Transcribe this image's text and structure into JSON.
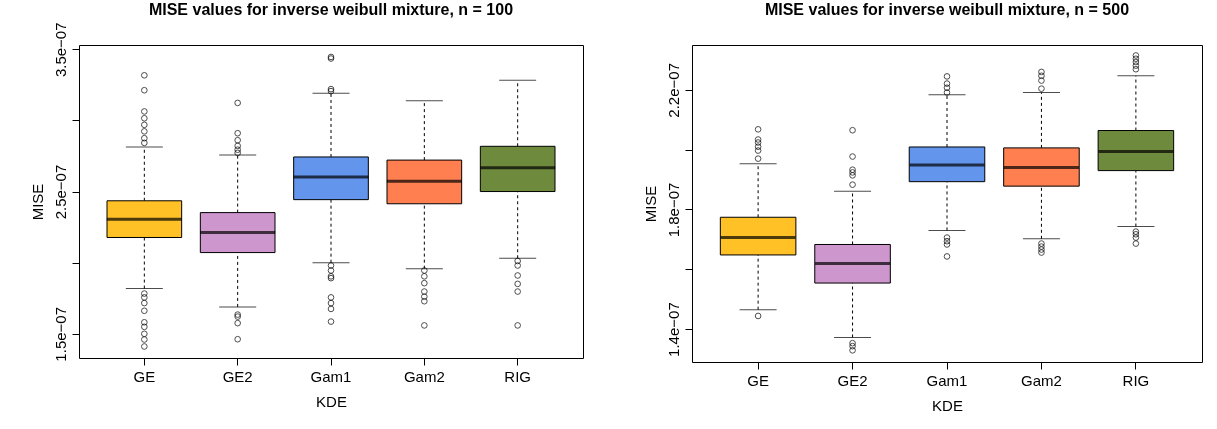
{
  "chart_data": [
    {
      "type": "box",
      "title": "MISE values for inverse weibull mixture, n = 100",
      "xlabel": "KDE",
      "ylabel": "MISE",
      "categories": [
        "GE",
        "GE2",
        "Gam1",
        "Gam2",
        "RIG"
      ],
      "colors": [
        "#ffc125",
        "#cd96cd",
        "#6495ed",
        "#ff7f50",
        "#6e8b3d"
      ],
      "ylim": [
        1.33e-07,
        3.53e-07
      ],
      "yticks": [
        {
          "value": 1.5e-07,
          "label": "1.5e−07"
        },
        {
          "value": 2e-07,
          "label": null
        },
        {
          "value": 2.5e-07,
          "label": "2.5e−07"
        },
        {
          "value": 3e-07,
          "label": null
        },
        {
          "value": 3.5e-07,
          "label": "3.5e−07"
        }
      ],
      "boxes": [
        {
          "low": 1.818e-07,
          "q1": 2.177e-07,
          "median": 2.306e-07,
          "q3": 2.435e-07,
          "high": 2.813e-07,
          "outliers": [
            3.317e-07,
            3.212e-07,
            3.063e-07,
            3.015e-07,
            2.969e-07,
            2.923e-07,
            2.875e-07,
            2.842e-07,
            1.783e-07,
            1.756e-07,
            1.716e-07,
            1.662e-07,
            1.581e-07,
            1.549e-07,
            1.5e-07,
            1.46e-07,
            1.411e-07
          ]
        },
        {
          "low": 1.689e-07,
          "q1": 2.071e-07,
          "median": 2.212e-07,
          "q3": 2.352e-07,
          "high": 2.756e-07,
          "outliers": [
            3.123e-07,
            2.91e-07,
            2.861e-07,
            2.821e-07,
            2.794e-07,
            2.772e-07,
            1.635e-07,
            1.621e-07,
            1.575e-07,
            1.462e-07
          ]
        },
        {
          "low": 2e-07,
          "q1": 2.443e-07,
          "median": 2.602e-07,
          "q3": 2.743e-07,
          "high": 3.19e-07,
          "outliers": [
            3.446e-07,
            3.435e-07,
            3.22e-07,
            3.206e-07,
            1.98e-07,
            1.945e-07,
            1.904e-07,
            1.891e-07,
            1.756e-07,
            1.716e-07,
            1.675e-07,
            1.586e-07
          ]
        },
        {
          "low": 1.958e-07,
          "q1": 2.414e-07,
          "median": 2.573e-07,
          "q3": 2.721e-07,
          "high": 3.139e-07,
          "outliers": [
            1.945e-07,
            1.904e-07,
            1.856e-07,
            1.797e-07,
            1.761e-07,
            1.729e-07,
            1.559e-07
          ]
        },
        {
          "low": 2.031e-07,
          "q1": 2.5e-07,
          "median": 2.667e-07,
          "q3": 2.818e-07,
          "high": 3.282e-07,
          "outliers": [
            2.012e-07,
            1.98e-07,
            1.91e-07,
            1.851e-07,
            1.797e-07,
            1.559e-07
          ]
        }
      ]
    },
    {
      "type": "box",
      "title": "MISE values for inverse weibull mixture, n = 500",
      "xlabel": "KDE",
      "ylabel": "MISE",
      "categories": [
        "GE",
        "GE2",
        "Gam1",
        "Gam2",
        "RIG"
      ],
      "colors": [
        "#ffc125",
        "#cd96cd",
        "#6495ed",
        "#ff7f50",
        "#6e8b3d"
      ],
      "ylim": [
        1.29e-07,
        2.35e-07
      ],
      "yticks": [
        {
          "value": 1.4e-07,
          "label": "1.4e−07"
        },
        {
          "value": 1.6e-07,
          "label": null
        },
        {
          "value": 1.8e-07,
          "label": "1.8e−07"
        },
        {
          "value": 2e-07,
          "label": null
        },
        {
          "value": 2.2e-07,
          "label": "2.2e−07"
        }
      ],
      "boxes": [
        {
          "low": 1.465e-07,
          "q1": 1.648e-07,
          "median": 1.706e-07,
          "q3": 1.774e-07,
          "high": 1.953e-07,
          "outliers": [
            2.068e-07,
            2.034e-07,
            2.024e-07,
            2.01e-07,
            1.997e-07,
            1.97e-07,
            1.444e-07
          ]
        },
        {
          "low": 1.372e-07,
          "q1": 1.554e-07,
          "median": 1.619e-07,
          "q3": 1.683e-07,
          "high": 1.861e-07,
          "outliers": [
            2.065e-07,
            1.977e-07,
            1.933e-07,
            1.924e-07,
            1.914e-07,
            1.883e-07,
            1.353e-07,
            1.343e-07,
            1.329e-07
          ]
        },
        {
          "low": 1.73e-07,
          "q1": 1.893e-07,
          "median": 1.949e-07,
          "q3": 2.009e-07,
          "high": 2.184e-07,
          "outliers": [
            2.245e-07,
            2.221e-07,
            2.207e-07,
            2.191e-07,
            1.706e-07,
            1.694e-07,
            1.683e-07,
            1.643e-07
          ]
        },
        {
          "low": 1.702e-07,
          "q1": 1.878e-07,
          "median": 1.94e-07,
          "q3": 2.006e-07,
          "high": 2.191e-07,
          "outliers": [
            2.26e-07,
            2.247e-07,
            2.231e-07,
            2.204e-07,
            1.686e-07,
            1.676e-07,
            1.666e-07,
            1.656e-07
          ]
        },
        {
          "low": 1.743e-07,
          "q1": 1.93e-07,
          "median": 1.994e-07,
          "q3": 2.064e-07,
          "high": 2.247e-07,
          "outliers": [
            2.315e-07,
            2.304e-07,
            2.293e-07,
            2.281e-07,
            2.269e-07,
            1.726e-07,
            1.717e-07,
            1.706e-07,
            1.686e-07
          ]
        }
      ]
    }
  ]
}
